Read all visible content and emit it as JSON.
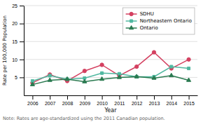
{
  "chart_data": {
    "type": "line",
    "x": [
      2006,
      2007,
      2008,
      2009,
      2010,
      2011,
      2012,
      2013,
      2014,
      2015
    ],
    "series": [
      {
        "name": "SDHU",
        "color": "#d44060",
        "marker": "circle",
        "values": [
          3.5,
          5.8,
          4.0,
          6.8,
          8.5,
          5.5,
          8.0,
          12.0,
          7.5,
          10.0
        ]
      },
      {
        "name": "Northeastern Ontario",
        "color": "#50b8a0",
        "marker": "square",
        "values": [
          4.0,
          5.5,
          4.5,
          4.8,
          6.2,
          6.0,
          5.2,
          5.2,
          8.0,
          7.5
        ]
      },
      {
        "name": "Ontario",
        "color": "#2a7a50",
        "marker": "triangle",
        "values": [
          3.0,
          4.2,
          4.5,
          3.8,
          4.5,
          5.0,
          5.2,
          4.8,
          5.5,
          4.2
        ]
      }
    ],
    "xlabel": "Year",
    "ylabel": "Rate per 100,000 Population",
    "annotations": [
      "Note: Rates are age-standardized using the 2011 Canadian population."
    ],
    "xlim": [
      2005.5,
      2015.5
    ],
    "xticks": [
      2006,
      2007,
      2008,
      2009,
      2010,
      2011,
      2012,
      2013,
      2014,
      2015
    ],
    "ylim": [
      0,
      25
    ],
    "yticks": [
      5,
      10,
      15,
      20,
      25
    ],
    "grid": "y",
    "legend": "upper right"
  }
}
